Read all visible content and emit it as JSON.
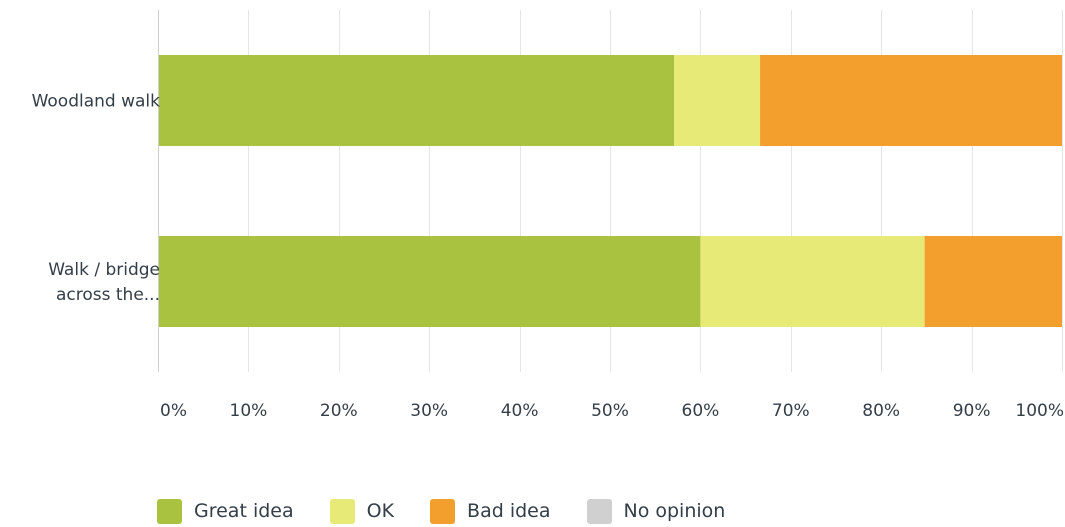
{
  "chart_data": {
    "type": "bar",
    "orientation": "horizontal",
    "stacked": true,
    "categories": [
      "Woodland walk",
      "Walk / bridge across the..."
    ],
    "category_label_lines": [
      [
        "Woodland walk"
      ],
      [
        "Walk / bridge",
        "across the..."
      ]
    ],
    "series": [
      {
        "name": "Great idea",
        "color": "#a9c23f",
        "values": [
          57.1,
          60.0
        ]
      },
      {
        "name": "OK",
        "color": "#e7ea76",
        "values": [
          9.5,
          24.8
        ]
      },
      {
        "name": "Bad idea",
        "color": "#f29f2d",
        "values": [
          33.4,
          15.2
        ]
      },
      {
        "name": "No opinion",
        "color": "#d0d0d0",
        "values": [
          0,
          0
        ]
      }
    ],
    "x_ticks": [
      "0%",
      "10%",
      "20%",
      "30%",
      "40%",
      "50%",
      "60%",
      "70%",
      "80%",
      "90%",
      "100%"
    ],
    "xlim": [
      0,
      100
    ],
    "grid": true,
    "legend_position": "bottom-left",
    "title": "",
    "xlabel": "",
    "ylabel": ""
  }
}
